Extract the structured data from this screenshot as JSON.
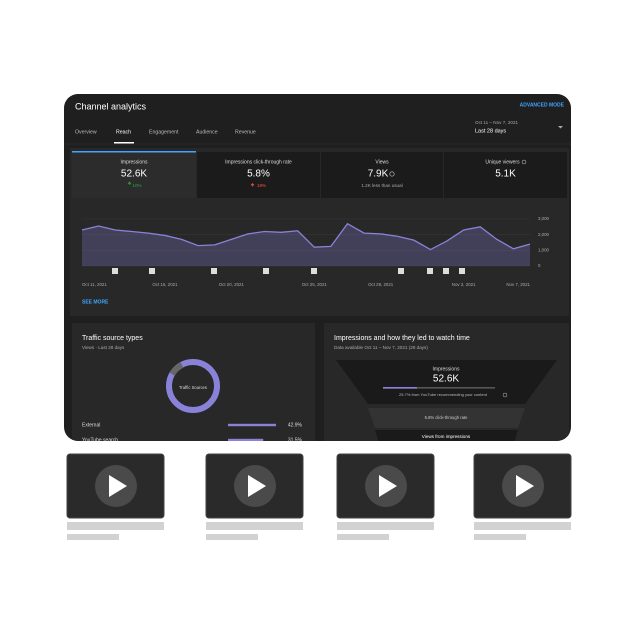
{
  "header": {
    "title": "Channel analytics",
    "advanced": "ADVANCED MODE",
    "date_range": "Oct 11 – Nov 7, 2021",
    "period": "Last 28 days"
  },
  "tabs": [
    "Overview",
    "Reach",
    "Engagement",
    "Audience",
    "Revenue"
  ],
  "cards": [
    {
      "label": "Impressions",
      "value": "52.6K",
      "delta": "10%"
    },
    {
      "label": "Impressions click-through rate",
      "value": "5.8%",
      "delta": "18%"
    },
    {
      "label": "Views",
      "value": "7.9K",
      "note": "1.2K less than usual"
    },
    {
      "label": "Unique viewers",
      "value": "5.1K"
    }
  ],
  "chart_data": {
    "type": "area",
    "categories": [
      "Oct 11, 2021",
      null,
      null,
      null,
      null,
      "Oct 16, 2021",
      null,
      null,
      null,
      "Oct 20, 2021",
      null,
      null,
      null,
      null,
      "Oct 25, 2021",
      null,
      null,
      null,
      "Oct 29, 2021",
      null,
      null,
      null,
      null,
      "Nov 3, 2021",
      null,
      null,
      null,
      "Nov 7, 2021"
    ],
    "values": [
      2300,
      2550,
      2300,
      2200,
      2100,
      1950,
      1700,
      1300,
      1350,
      1700,
      2050,
      2200,
      2150,
      2250,
      1200,
      1250,
      2700,
      2100,
      2050,
      1900,
      1650,
      1050,
      1600,
      2300,
      2500,
      1700,
      1100,
      1400
    ],
    "ylim": [
      0,
      3000
    ],
    "yticks": [
      0,
      {
        "value": 1000,
        "label": "1,000"
      },
      {
        "value": 2000,
        "label": "2,000"
      },
      {
        "value": 3000,
        "label": "3,000"
      }
    ],
    "color": "#8a82d8",
    "grid": true
  },
  "see_more": "SEE MORE",
  "traffic": {
    "title": "Traffic source types",
    "subtitle": "Views · Last 28 days",
    "center_label": "Traffic Sources",
    "categories": [
      "External",
      "YouTube search"
    ],
    "values": [
      42.9,
      31.5
    ],
    "value_labels": [
      "42.9%",
      "31.5%"
    ],
    "color": "#8a82d8"
  },
  "impressions": {
    "title": "Impressions and how they led to watch time",
    "subtitle": "Data available Oct 11 – Nov 7, 2021 (28 days)",
    "label": "Impressions",
    "value": "52.6K",
    "recommend": "25.7% from YouTube recommending your content",
    "ctr": "5.8% click-through rate",
    "views": "Views from impressions"
  }
}
